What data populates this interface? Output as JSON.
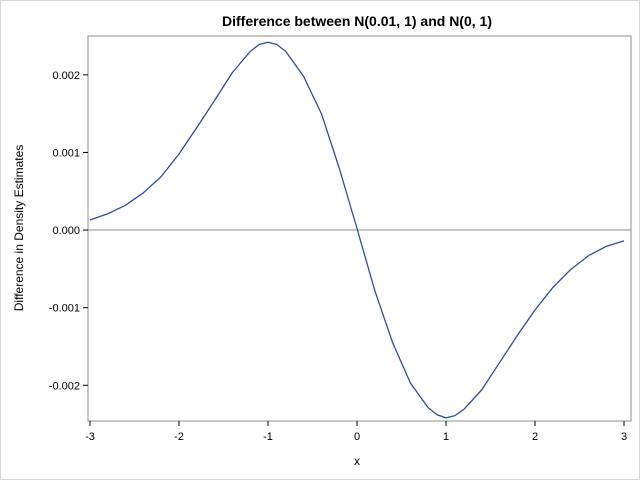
{
  "chart_data": {
    "type": "line",
    "title": "Difference between N(0.01, 1) and N(0, 1)",
    "xlabel": "x",
    "ylabel": "Difference in Density Estimates",
    "xlim": [
      -3.0,
      3.0
    ],
    "ylim": [
      -0.00246,
      0.0025
    ],
    "x_ticks": [
      -3,
      -2,
      -1,
      0,
      1,
      2,
      3
    ],
    "x_tick_labels": [
      "-3",
      "-2",
      "-1",
      "0",
      "1",
      "2",
      "3"
    ],
    "y_ticks": [
      -0.002,
      -0.001,
      0.0,
      0.001,
      0.002
    ],
    "y_tick_labels": [
      "-0.002",
      "-0.001",
      "0.000",
      "0.001",
      "0.002"
    ],
    "reference_line_y": 0,
    "grid": false,
    "legend": "none",
    "line_color": "#2a4d9e",
    "series": [
      {
        "x": [
          -3.0,
          -2.8,
          -2.6,
          -2.4,
          -2.2,
          -2.0,
          -1.8,
          -1.6,
          -1.4,
          -1.2,
          -1.1,
          -1.0,
          -0.9,
          -0.8,
          -0.6,
          -0.4,
          -0.2,
          0.0,
          0.2,
          0.4,
          0.6,
          0.8,
          0.9,
          1.0,
          1.1,
          1.2,
          1.4,
          1.6,
          1.8,
          2.0,
          2.2,
          2.4,
          2.6,
          2.8,
          3.0
        ],
        "values": [
          0.00013,
          0.00021,
          0.00032,
          0.00048,
          0.00069,
          0.00098,
          0.00132,
          0.00167,
          0.00203,
          0.0023,
          0.00239,
          0.00242,
          0.00239,
          0.0023,
          0.00198,
          0.0015,
          0.0008,
          2e-05,
          -0.00078,
          -0.00145,
          -0.00197,
          -0.00229,
          -0.00238,
          -0.00242,
          -0.00239,
          -0.00231,
          -0.00206,
          -0.00171,
          -0.00136,
          -0.00103,
          -0.00074,
          -0.00051,
          -0.00033,
          -0.00021,
          -0.00014
        ]
      }
    ]
  }
}
